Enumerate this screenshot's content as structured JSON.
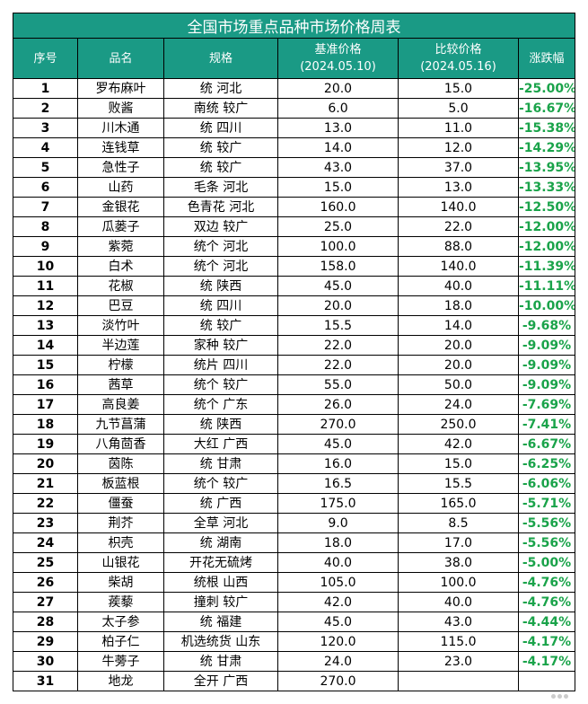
{
  "table": {
    "title": "全国市场重点品种市场价格周表",
    "headers": {
      "idx": "序号",
      "name": "品名",
      "spec": "规格",
      "base_price_label": "基准价格",
      "base_price_date": "(2024.05.10)",
      "compare_price_label": "比较价格",
      "compare_price_date": "(2024.05.16)",
      "change": "涨跌幅"
    },
    "rows": [
      {
        "idx": "1",
        "name": "罗布麻叶",
        "spec": "统 河北",
        "base": "20.0",
        "compare": "15.0",
        "change": "-25.00%"
      },
      {
        "idx": "2",
        "name": "败酱",
        "spec": "南统 较广",
        "base": "6.0",
        "compare": "5.0",
        "change": "-16.67%"
      },
      {
        "idx": "3",
        "name": "川木通",
        "spec": "统 四川",
        "base": "13.0",
        "compare": "11.0",
        "change": "-15.38%"
      },
      {
        "idx": "4",
        "name": "连钱草",
        "spec": "统 较广",
        "base": "14.0",
        "compare": "12.0",
        "change": "-14.29%"
      },
      {
        "idx": "5",
        "name": "急性子",
        "spec": "统 较广",
        "base": "43.0",
        "compare": "37.0",
        "change": "-13.95%"
      },
      {
        "idx": "6",
        "name": "山药",
        "spec": "毛条 河北",
        "base": "15.0",
        "compare": "13.0",
        "change": "-13.33%"
      },
      {
        "idx": "7",
        "name": "金银花",
        "spec": "色青花 河北",
        "base": "160.0",
        "compare": "140.0",
        "change": "-12.50%"
      },
      {
        "idx": "8",
        "name": "瓜蒌子",
        "spec": "双边 较广",
        "base": "25.0",
        "compare": "22.0",
        "change": "-12.00%"
      },
      {
        "idx": "9",
        "name": "紫菀",
        "spec": "统个 河北",
        "base": "100.0",
        "compare": "88.0",
        "change": "-12.00%"
      },
      {
        "idx": "10",
        "name": "白术",
        "spec": "统个 河北",
        "base": "158.0",
        "compare": "140.0",
        "change": "-11.39%"
      },
      {
        "idx": "11",
        "name": "花椒",
        "spec": "统 陕西",
        "base": "45.0",
        "compare": "40.0",
        "change": "-11.11%"
      },
      {
        "idx": "12",
        "name": "巴豆",
        "spec": "统 四川",
        "base": "20.0",
        "compare": "18.0",
        "change": "-10.00%"
      },
      {
        "idx": "13",
        "name": "淡竹叶",
        "spec": "统 较广",
        "base": "15.5",
        "compare": "14.0",
        "change": "-9.68%"
      },
      {
        "idx": "14",
        "name": "半边莲",
        "spec": "家种 较广",
        "base": "22.0",
        "compare": "20.0",
        "change": "-9.09%"
      },
      {
        "idx": "15",
        "name": "柠檬",
        "spec": "统片 四川",
        "base": "22.0",
        "compare": "20.0",
        "change": "-9.09%"
      },
      {
        "idx": "16",
        "name": "茜草",
        "spec": "统个 较广",
        "base": "55.0",
        "compare": "50.0",
        "change": "-9.09%"
      },
      {
        "idx": "17",
        "name": "高良姜",
        "spec": "统个 广东",
        "base": "26.0",
        "compare": "24.0",
        "change": "-7.69%"
      },
      {
        "idx": "18",
        "name": "九节菖蒲",
        "spec": "统 陕西",
        "base": "270.0",
        "compare": "250.0",
        "change": "-7.41%"
      },
      {
        "idx": "19",
        "name": "八角茴香",
        "spec": "大红 广西",
        "base": "45.0",
        "compare": "42.0",
        "change": "-6.67%"
      },
      {
        "idx": "20",
        "name": "茵陈",
        "spec": "统 甘肃",
        "base": "16.0",
        "compare": "15.0",
        "change": "-6.25%"
      },
      {
        "idx": "21",
        "name": "板蓝根",
        "spec": "统个 较广",
        "base": "16.5",
        "compare": "15.5",
        "change": "-6.06%"
      },
      {
        "idx": "22",
        "name": "僵蚕",
        "spec": "统 广西",
        "base": "175.0",
        "compare": "165.0",
        "change": "-5.71%"
      },
      {
        "idx": "23",
        "name": "荆芥",
        "spec": "全草 河北",
        "base": "9.0",
        "compare": "8.5",
        "change": "-5.56%"
      },
      {
        "idx": "24",
        "name": "枳壳",
        "spec": "统 湖南",
        "base": "18.0",
        "compare": "17.0",
        "change": "-5.56%"
      },
      {
        "idx": "25",
        "name": "山银花",
        "spec": "开花无硫烤",
        "base": "40.0",
        "compare": "38.0",
        "change": "-5.00%"
      },
      {
        "idx": "26",
        "name": "柴胡",
        "spec": "统根 山西",
        "base": "105.0",
        "compare": "100.0",
        "change": "-4.76%"
      },
      {
        "idx": "27",
        "name": "蒺藜",
        "spec": "撞刺 较广",
        "base": "42.0",
        "compare": "40.0",
        "change": "-4.76%"
      },
      {
        "idx": "28",
        "name": "太子参",
        "spec": "统 福建",
        "base": "45.0",
        "compare": "43.0",
        "change": "-4.44%"
      },
      {
        "idx": "29",
        "name": "柏子仁",
        "spec": "机选统货 山东",
        "base": "120.0",
        "compare": "115.0",
        "change": "-4.17%"
      },
      {
        "idx": "30",
        "name": "牛蒡子",
        "spec": "统 甘肃",
        "base": "24.0",
        "compare": "23.0",
        "change": "-4.17%"
      },
      {
        "idx": "31",
        "name": "地龙",
        "spec": "全开 广西",
        "base": "270.0",
        "compare": "",
        "change": ""
      }
    ]
  },
  "colors": {
    "header_bg": "#1a9a85",
    "header_text": "#ffffff",
    "change_text": "#1aa34a"
  }
}
